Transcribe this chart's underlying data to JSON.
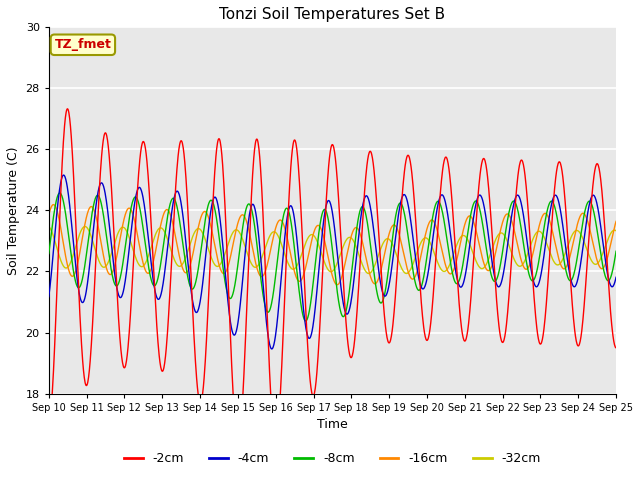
{
  "title": "Tonzi Soil Temperatures Set B",
  "xlabel": "Time",
  "ylabel": "Soil Temperature (C)",
  "ylim": [
    18,
    30
  ],
  "yticks": [
    18,
    20,
    22,
    24,
    26,
    28,
    30
  ],
  "date_labels": [
    "Sep 10",
    "Sep 11",
    "Sep 12",
    "Sep 13",
    "Sep 14",
    "Sep 15",
    "Sep 16",
    "Sep 17",
    "Sep 18",
    "Sep 19",
    "Sep 20",
    "Sep 21",
    "Sep 22",
    "Sep 23",
    "Sep 24",
    "Sep 25"
  ],
  "series_colors": [
    "#ff0000",
    "#0000cc",
    "#00bb00",
    "#ff8800",
    "#cccc00"
  ],
  "series_labels": [
    "-2cm",
    "-4cm",
    "-8cm",
    "-16cm",
    "-32cm"
  ],
  "annotation_text": "TZ_fmet",
  "annotation_color": "#cc0000",
  "annotation_bg": "#ffffcc",
  "annotation_border": "#999900",
  "plot_bg": "#e8e8e8",
  "fig_bg": "#ffffff",
  "grid_color": "#ffffff",
  "n_days": 15,
  "points_per_day": 96
}
